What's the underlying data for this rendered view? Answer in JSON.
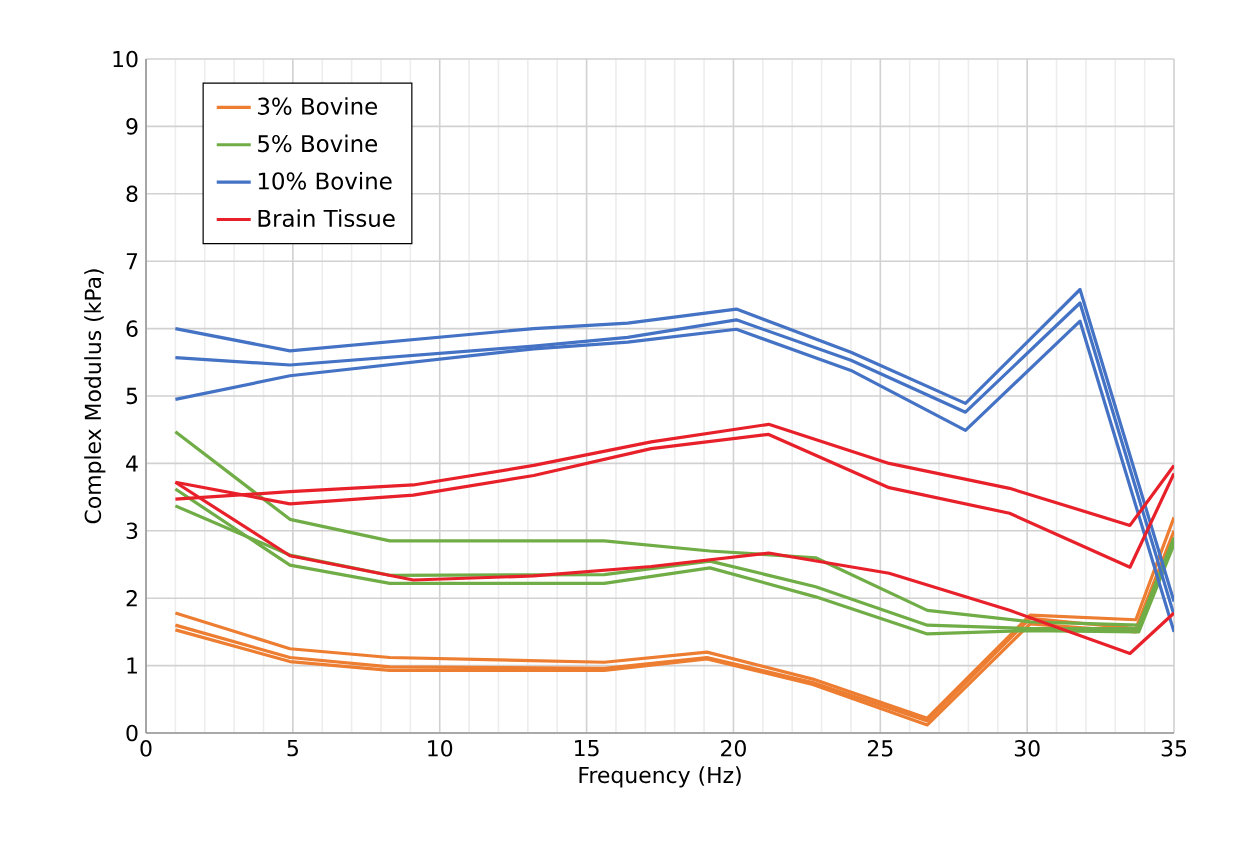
{
  "chart_data": {
    "type": "line",
    "xlabel": "Frequency (Hz)",
    "ylabel": "Complex Modulus (kPa)",
    "xlim": [
      0,
      35
    ],
    "ylim": [
      0,
      10
    ],
    "xticks": [
      0,
      5,
      10,
      15,
      20,
      25,
      30,
      35
    ],
    "yticks": [
      0,
      1,
      2,
      3,
      4,
      5,
      6,
      7,
      8,
      9,
      10
    ],
    "grid": true,
    "legend": "top left",
    "marker": "none",
    "line_style": "solid",
    "series": [
      {
        "name": "3% Bovine",
        "color": "#ed7d31",
        "x": [
          1,
          4.9,
          8.3,
          15.6,
          19.1,
          22.7,
          26.6,
          30.1,
          33.7,
          35
        ],
        "values": [
          1.78,
          1.25,
          1.12,
          1.05,
          1.2,
          0.8,
          0.22,
          1.75,
          1.68,
          3.2
        ]
      },
      {
        "color": "#ed7d31",
        "x": [
          1,
          4.9,
          8.3,
          15.6,
          19.1,
          22.7,
          26.6,
          30.1,
          33.7,
          35
        ],
        "values": [
          1.6,
          1.12,
          0.98,
          0.96,
          1.12,
          0.75,
          0.18,
          1.7,
          1.55,
          3.0
        ]
      },
      {
        "color": "#ed7d31",
        "x": [
          1,
          4.9,
          8.3,
          15.6,
          19.1,
          22.7,
          26.6,
          30.1,
          33.7,
          35
        ],
        "values": [
          1.53,
          1.06,
          0.93,
          0.93,
          1.1,
          0.72,
          0.12,
          1.62,
          1.5,
          2.9
        ]
      },
      {
        "name": "5% Bovine",
        "color": "#70ad47",
        "x": [
          1,
          4.9,
          8.3,
          15.6,
          19.2,
          22.8,
          26.6,
          30.1,
          33.8,
          35
        ],
        "values": [
          4.47,
          3.17,
          2.85,
          2.85,
          2.7,
          2.6,
          1.82,
          1.65,
          1.6,
          2.9
        ]
      },
      {
        "color": "#70ad47",
        "x": [
          1,
          4.9,
          8.3,
          15.6,
          19.2,
          22.8,
          26.6,
          30.1,
          33.8,
          35
        ],
        "values": [
          3.37,
          2.64,
          2.34,
          2.35,
          2.55,
          2.17,
          1.6,
          1.55,
          1.55,
          2.85
        ]
      },
      {
        "color": "#70ad47",
        "x": [
          1,
          4.9,
          8.3,
          15.6,
          19.2,
          22.8,
          26.6,
          30.1,
          33.8,
          35
        ],
        "values": [
          3.62,
          2.49,
          2.22,
          2.22,
          2.45,
          2.02,
          1.47,
          1.52,
          1.5,
          2.8
        ]
      },
      {
        "name": "10% Bovine",
        "color": "#4472c4",
        "x": [
          1,
          4.9,
          13.2,
          16.4,
          20.1,
          24,
          27.9,
          31.8,
          35
        ],
        "values": [
          6.0,
          5.67,
          6.0,
          6.08,
          6.29,
          5.65,
          4.89,
          6.58,
          1.95
        ]
      },
      {
        "color": "#4472c4",
        "x": [
          1,
          4.9,
          13.2,
          16.4,
          20.1,
          24,
          27.9,
          31.8,
          35
        ],
        "values": [
          5.57,
          5.46,
          5.74,
          5.87,
          6.13,
          5.53,
          4.76,
          6.38,
          1.75
        ]
      },
      {
        "color": "#4472c4",
        "x": [
          1,
          4.9,
          13.2,
          16.4,
          20.1,
          24,
          27.9,
          31.8,
          35
        ],
        "values": [
          4.95,
          5.3,
          5.7,
          5.8,
          5.99,
          5.38,
          4.49,
          6.11,
          1.5
        ]
      },
      {
        "name": "Brain Tissue",
        "color": "#e8202a",
        "x": [
          1,
          4.9,
          9.1,
          13.2,
          17.2,
          21.2,
          25.3,
          29.4,
          33.5,
          35
        ],
        "values": [
          3.47,
          3.58,
          3.68,
          3.97,
          4.32,
          4.58,
          4.0,
          3.63,
          3.08,
          3.97
        ]
      },
      {
        "color": "#e8202a",
        "x": [
          1,
          4.9,
          9.1,
          13.2,
          17.2,
          21.2,
          25.3,
          29.4,
          33.5,
          35
        ],
        "values": [
          3.72,
          3.4,
          3.53,
          3.82,
          4.22,
          4.43,
          3.64,
          3.26,
          2.46,
          3.85
        ]
      },
      {
        "color": "#e8202a",
        "x": [
          1,
          4.9,
          9.1,
          13.2,
          17.2,
          21.2,
          25.3,
          29.4,
          33.5,
          35
        ],
        "values": [
          3.72,
          2.63,
          2.27,
          2.33,
          2.47,
          2.67,
          2.37,
          1.82,
          1.18,
          1.78
        ]
      }
    ]
  }
}
